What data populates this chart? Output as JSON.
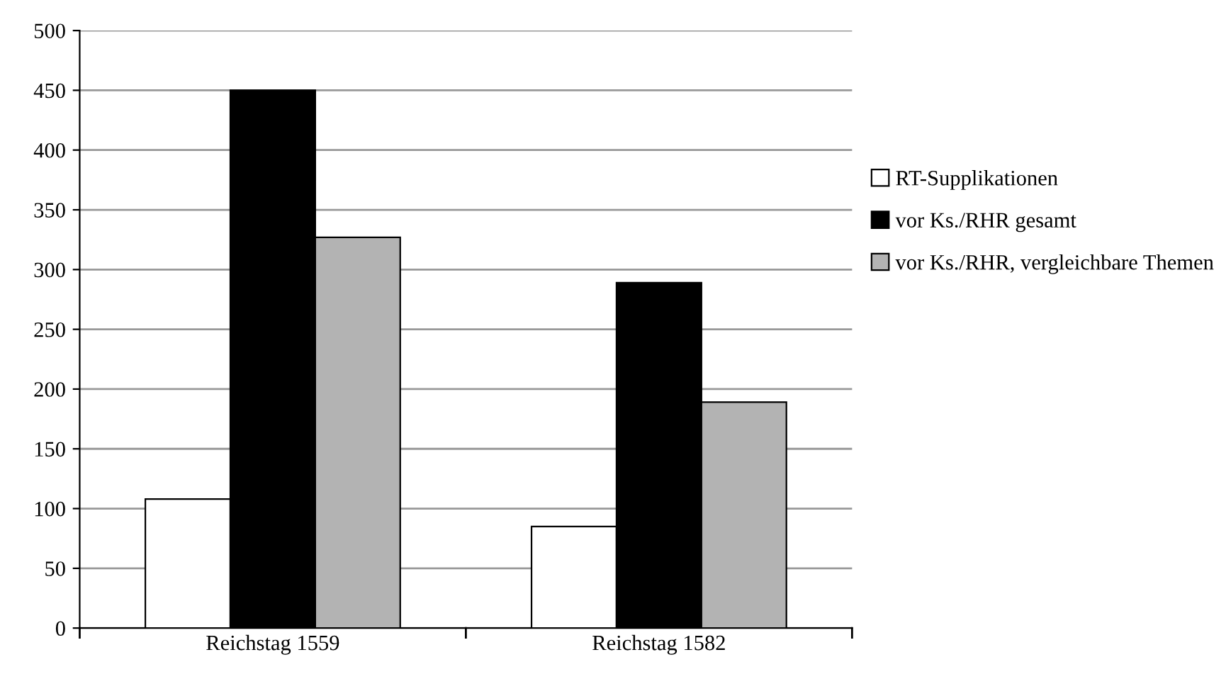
{
  "chart_data": {
    "type": "bar",
    "categories": [
      "Reichstag 1559",
      "Reichstag 1582"
    ],
    "series": [
      {
        "name": "RT-Supplikationen",
        "color": "#ffffff",
        "values": [
          108,
          85
        ]
      },
      {
        "name": "vor Ks./RHR gesamt",
        "color": "#000000",
        "values": [
          450,
          289
        ]
      },
      {
        "name": "vor Ks./RHR, vergleichbare Themen",
        "color": "#b3b3b3",
        "values": [
          327,
          189
        ]
      }
    ],
    "ylim": [
      0,
      500
    ],
    "yticks": [
      0,
      50,
      100,
      150,
      200,
      250,
      300,
      350,
      400,
      450,
      500
    ],
    "grid": "y",
    "legend": "right"
  }
}
